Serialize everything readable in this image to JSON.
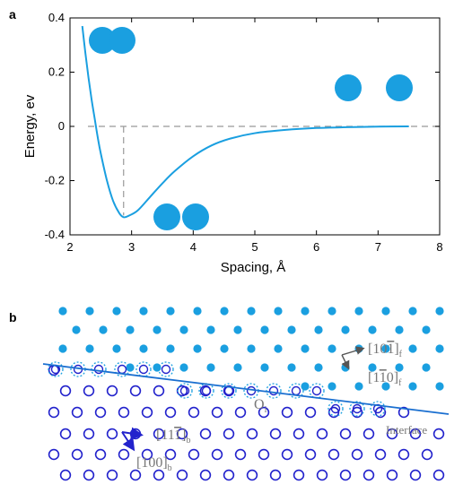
{
  "panels": {
    "a": "a",
    "b": "b"
  },
  "chart_data": {
    "type": "line",
    "series": [
      {
        "x": [
          2.2,
          2.25,
          2.3,
          2.35,
          2.4,
          2.45,
          2.5,
          2.6,
          2.7,
          2.8,
          2.87,
          2.95,
          3.1,
          3.3,
          3.5,
          3.7,
          4.0,
          4.3,
          4.6,
          5.0,
          5.5,
          6.0,
          6.5,
          7.0,
          7.5
        ],
        "y": [
          0.37,
          0.27,
          0.18,
          0.1,
          0.03,
          -0.04,
          -0.1,
          -0.2,
          -0.275,
          -0.32,
          -0.335,
          -0.33,
          -0.31,
          -0.26,
          -0.21,
          -0.165,
          -0.11,
          -0.07,
          -0.045,
          -0.025,
          -0.013,
          -0.006,
          -0.003,
          -0.001,
          0.0
        ]
      }
    ],
    "xlabel": "Spacing, Å",
    "ylabel": "Energy, ev",
    "xlim": [
      2,
      8
    ],
    "ylim": [
      -0.4,
      0.4
    ],
    "xticks": [
      "2",
      "3",
      "4",
      "5",
      "6",
      "7",
      "8"
    ],
    "yticks": [
      "0.4",
      "0.2",
      "0",
      "-0.2",
      "-0.4"
    ],
    "xticks_values": [
      2,
      3,
      4,
      5,
      6,
      7,
      8
    ],
    "yticks_values": [
      0.4,
      0.2,
      0,
      -0.2,
      -0.4
    ],
    "zero_line": 0,
    "minimum_x": 2.87,
    "grid": false,
    "colors": {
      "curve": "#1a9fe0",
      "atoms": "#1a9fe0",
      "reference": "#999999"
    }
  },
  "lattice": {
    "labels": {
      "fcc_dir1": {
        "main": "[10",
        "bar": "1",
        "close": "]",
        "sub": "f"
      },
      "fcc_dir2": {
        "main": "[1",
        "bar": "1",
        "close": "0]",
        "sub": "f"
      },
      "bcc_dir1": {
        "main": "[11",
        "bar": "1",
        "close": "]",
        "sub": "b"
      },
      "bcc_dir2": {
        "main": "[100]",
        "sub": "b"
      },
      "origin": {
        "main": "O",
        "sub": "i"
      },
      "interface": "Interface"
    },
    "colors": {
      "fcc": "#1a9fe0",
      "bcc": "#2222cc",
      "arrow": "#555555",
      "interface": "#1a6fd0"
    }
  }
}
